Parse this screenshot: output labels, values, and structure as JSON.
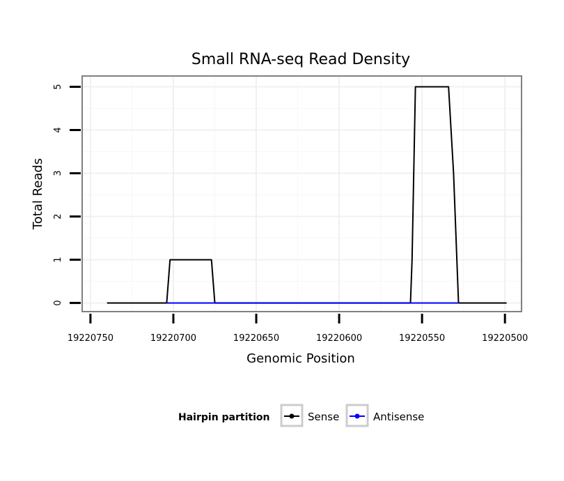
{
  "chart_data": {
    "type": "line",
    "title": "Small RNA-seq Read Density",
    "xlabel": "Genomic Position",
    "ylabel": "Total Reads",
    "xlim": [
      19220755,
      19220490
    ],
    "ylim": [
      -0.2,
      5.25
    ],
    "x_reversed": true,
    "grid": true,
    "xticks": [
      19220750,
      19220700,
      19220650,
      19220600,
      19220550,
      19220500
    ],
    "xtick_labels": [
      "19220750",
      "19220700",
      "19220650",
      "19220600",
      "19220550",
      "19220500"
    ],
    "yticks": [
      0,
      1,
      2,
      3,
      4,
      5
    ],
    "ytick_labels": [
      "0",
      "1",
      "2",
      "3",
      "4",
      "5"
    ],
    "series": [
      {
        "name": "Sense",
        "color": "#000000",
        "x": [
          19220740,
          19220704,
          19220702,
          19220677,
          19220675,
          19220557,
          19220556,
          19220554,
          19220534,
          19220531,
          19220528,
          19220499
        ],
        "y": [
          0,
          0,
          1,
          1,
          0,
          0,
          1,
          5,
          5,
          3,
          0,
          0
        ]
      },
      {
        "name": "Antisense",
        "color": "#0000ff",
        "x": [
          19220704,
          19220675,
          19220557,
          19220528
        ],
        "y": [
          0,
          0,
          0,
          0
        ]
      }
    ],
    "legend": {
      "title": "Hairpin partition",
      "position": "bottom",
      "entries": [
        {
          "label": "Sense",
          "color": "#000000"
        },
        {
          "label": "Antisense",
          "color": "#0000ff"
        }
      ]
    }
  }
}
